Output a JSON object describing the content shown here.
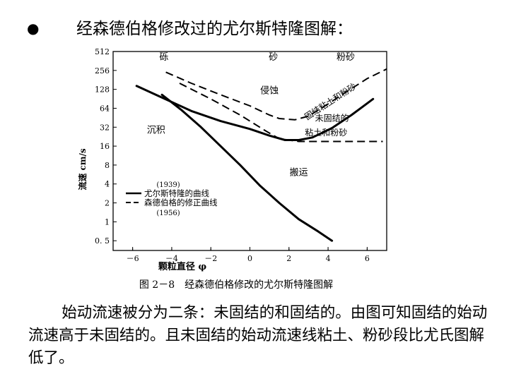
{
  "slide": {
    "bullet": "●",
    "title": "经森德伯格修改过的尤尔斯特隆图解：",
    "body": "始动流速被分为二条：未固结的和固结的。由图可知固结的始动流速高于未固结的。且未固结的始动流速线粘土、粉砂段比尤氏图解低了。"
  },
  "chart_data": {
    "type": "line",
    "title": "",
    "caption": "图 2－8　经森德伯格修改的尤尔斯特隆图解",
    "xlabel": "颗粒直径 φ",
    "ylabel": "流速 cm/s",
    "xlim": [
      -7,
      7
    ],
    "ylim": [
      0.35,
      512
    ],
    "yscale": "log2",
    "x_ticks": [
      {
        "value": -6,
        "label": "－6"
      },
      {
        "value": -4,
        "label": "－4"
      },
      {
        "value": -2,
        "label": "－2"
      },
      {
        "value": 0,
        "label": "0"
      },
      {
        "value": 2,
        "label": "2"
      },
      {
        "value": 4,
        "label": "4"
      },
      {
        "value": 6,
        "label": "6"
      }
    ],
    "y_ticks": [
      {
        "value": 512,
        "label": "512"
      },
      {
        "value": 256,
        "label": "256"
      },
      {
        "value": 128,
        "label": "128"
      },
      {
        "value": 64,
        "label": "64"
      },
      {
        "value": 32,
        "label": "32"
      },
      {
        "value": 16,
        "label": "16"
      },
      {
        "value": 8,
        "label": "8"
      },
      {
        "value": 4,
        "label": "4"
      },
      {
        "value": 2,
        "label": "2"
      },
      {
        "value": 1,
        "label": "1"
      },
      {
        "value": 0.5,
        "label": "0. 5"
      }
    ],
    "top_labels": [
      {
        "text": "砾",
        "x": -4.4
      },
      {
        "text": "砂",
        "x": 1.2
      },
      {
        "text": "粉砂",
        "x": 4.9
      }
    ],
    "region_labels": [
      {
        "text": "侵蚀",
        "x": 1.0,
        "y": 110
      },
      {
        "text": "沉积",
        "x": -4.8,
        "y": 26
      },
      {
        "text": "搬运",
        "x": 2.5,
        "y": 5.5
      }
    ],
    "curve_labels": [
      {
        "text": "固结粘土和粉砂",
        "x": 4.2,
        "y": 75,
        "angle": -33
      },
      {
        "text": "未固结的",
        "x": 4.2,
        "y": 40
      },
      {
        "text": "粘土和粉砂",
        "x": 3.9,
        "y": 23.5
      }
    ],
    "legend": {
      "position": "lower-left",
      "items": [
        {
          "year": "(1939)",
          "label": "尤尔斯特隆的曲线",
          "style": "solid"
        },
        {
          "label": "森德伯格的修正曲线",
          "year": "(1956)",
          "style": "dashed"
        }
      ]
    },
    "series": [
      {
        "style": "solid",
        "width": 3,
        "x": [
          -5.8,
          -4.5,
          -3,
          -1.5,
          0,
          1,
          1.8,
          2.5,
          3.2,
          4.2,
          5.2,
          6.3
        ],
        "y": [
          145,
          95,
          58,
          40,
          30,
          23.5,
          20,
          20,
          22,
          31,
          50,
          90
        ]
      },
      {
        "style": "solid",
        "width": 3,
        "x": [
          -4.5,
          -3.5,
          -2.5,
          -1.5,
          -0.5,
          0.5,
          1.5,
          2.5,
          3.5,
          4.2
        ],
        "y": [
          105,
          60,
          32,
          16,
          8,
          3.8,
          2.0,
          1.1,
          0.7,
          0.5
        ]
      },
      {
        "style": "dashed",
        "width": 2,
        "x": [
          -4.3,
          -3,
          -1.5,
          0,
          1,
          1.5,
          2.3,
          3,
          4,
          5,
          6,
          7
        ],
        "y": [
          240,
          160,
          105,
          70,
          50,
          44,
          42,
          48,
          75,
          120,
          190,
          270
        ]
      },
      {
        "style": "dashed",
        "width": 2,
        "x": [
          -3.6,
          -2,
          -0.5,
          0.8,
          1.5,
          2.5,
          3.5,
          4.5,
          5.5,
          6.8
        ],
        "y": [
          160,
          90,
          50,
          28,
          21,
          19,
          19,
          19,
          19,
          19
        ]
      }
    ]
  }
}
